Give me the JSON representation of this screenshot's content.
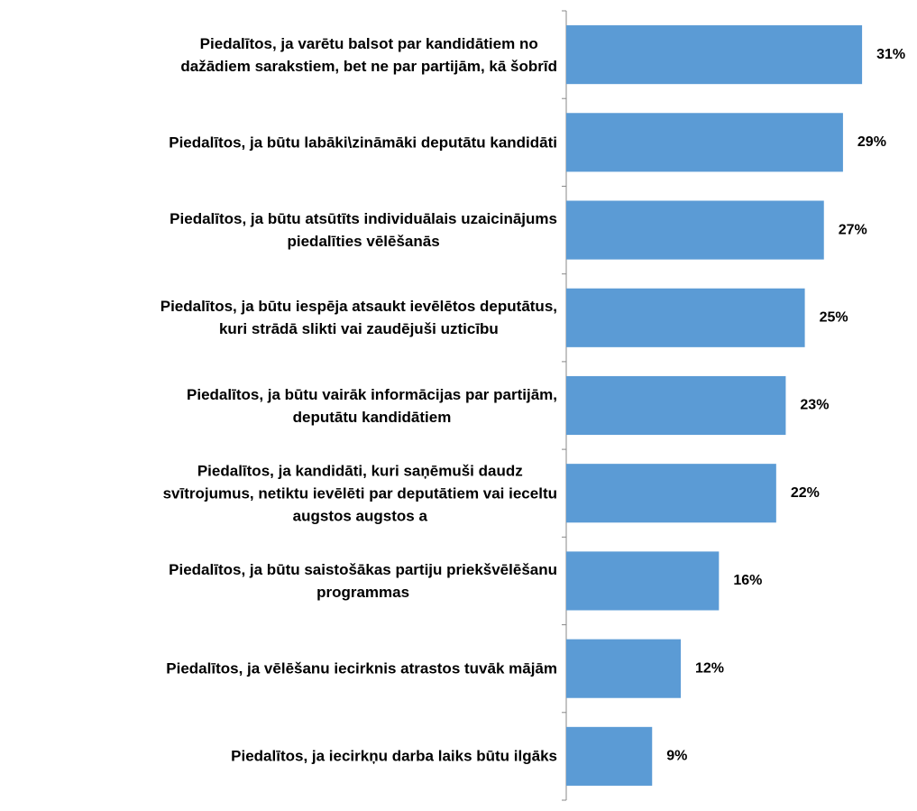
{
  "chart_data": {
    "type": "bar",
    "orientation": "horizontal",
    "categories": [
      "Piedalītos, ja varētu balsot par kandidātiem no\ndažādiem sarakstiem, bet ne par partijām, kā šobrīd",
      "Piedalītos, ja būtu labāki\\zināmāki deputātu kandidāti",
      "Piedalītos, ja būtu atsūtīts individuālais uzaicinājums\npiedalīties vēlēšanās",
      "Piedalītos, ja būtu iespēja atsaukt ievēlētos deputātus,\nkuri strādā slikti vai zaudējuši uzticību",
      "Piedalītos, ja būtu vairāk informācijas par partijām,\ndeputātu kandidātiem",
      "Piedalītos, ja kandidāti, kuri saņēmuši daudz\nsvītrojumus, netiktu ievēlēti par deputātiem vai ieceltu\naugstos augstos a",
      "Piedalītos, ja būtu saistošākas partiju priekšvēlēšanu\nprogrammas",
      "Piedalītos, ja vēlēšanu iecirknis atrastos tuvāk mājām",
      "Piedalītos, ja iecirkņu darba laiks būtu ilgāks"
    ],
    "values": [
      31,
      29,
      27,
      25,
      23,
      22,
      16,
      12,
      9
    ],
    "value_labels": [
      "31%",
      "29%",
      "27%",
      "25%",
      "23%",
      "22%",
      "16%",
      "12%",
      "9%"
    ],
    "color": "#5b9bd5",
    "xlim": [
      0,
      36
    ]
  }
}
